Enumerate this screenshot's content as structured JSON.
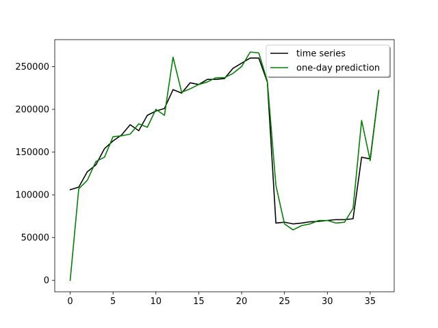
{
  "chart_data": {
    "type": "line",
    "title": "",
    "xlabel": "",
    "ylabel": "",
    "xlim": [
      -1.8,
      37.8
    ],
    "ylim": [
      -13400,
      281500
    ],
    "x_ticks": [
      0,
      5,
      10,
      15,
      20,
      25,
      30,
      35
    ],
    "y_ticks": [
      0,
      50000,
      100000,
      150000,
      200000,
      250000
    ],
    "x": [
      0,
      1,
      2,
      3,
      4,
      5,
      6,
      7,
      8,
      9,
      10,
      11,
      12,
      13,
      14,
      15,
      16,
      17,
      18,
      19,
      20,
      21,
      22,
      23,
      24,
      25,
      26,
      27,
      28,
      29,
      30,
      31,
      32,
      33,
      34,
      35,
      36
    ],
    "series": [
      {
        "name": "time series",
        "color": "#000000",
        "values": [
          106000,
          109000,
          127000,
          135000,
          154000,
          163000,
          170000,
          182000,
          175000,
          193000,
          198000,
          201000,
          223000,
          219000,
          231000,
          229000,
          235000,
          235000,
          236000,
          248000,
          254000,
          260000,
          260000,
          232000,
          67000,
          68000,
          66000,
          67000,
          68500,
          69000,
          70000,
          71000,
          71000,
          72000,
          144000,
          142000,
          222000
        ]
      },
      {
        "name": "one-day prediction",
        "color": "#008000",
        "values": [
          0,
          107000,
          117000,
          139000,
          144000,
          168000,
          169000,
          171000,
          183000,
          179000,
          200000,
          193000,
          261000,
          220000,
          224000,
          229000,
          232000,
          237000,
          237000,
          242000,
          250000,
          267000,
          266000,
          233000,
          111000,
          66000,
          59000,
          64000,
          66000,
          70000,
          70000,
          67000,
          68000,
          84000,
          187000,
          140000,
          222000
        ]
      }
    ],
    "legend_position": "upper right"
  }
}
